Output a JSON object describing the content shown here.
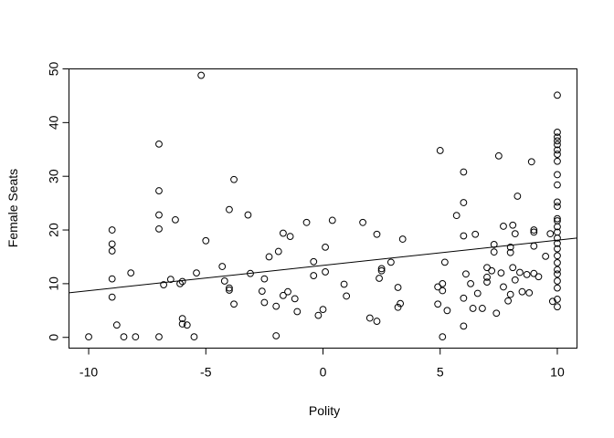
{
  "chart_data": {
    "type": "scatter",
    "title": "",
    "xlabel": "Polity",
    "ylabel": "Female Seats",
    "xlim": [
      -10.84,
      10.84
    ],
    "ylim": [
      -2.0,
      50.0
    ],
    "xticks": [
      -10,
      -5,
      0,
      5,
      10
    ],
    "yticks": [
      0,
      10,
      20,
      30,
      40,
      50
    ],
    "grid": false,
    "legend": "none",
    "fit_line": {
      "intercept": 13.4,
      "slope": 0.47
    },
    "points": [
      [
        -10,
        0.1
      ],
      [
        -9,
        7.5
      ],
      [
        -9,
        10.9
      ],
      [
        -9,
        16.1
      ],
      [
        -9,
        17.4
      ],
      [
        -9,
        20
      ],
      [
        -8.8,
        2.3
      ],
      [
        -8.5,
        0.1
      ],
      [
        -8.2,
        12
      ],
      [
        -8,
        0.1
      ],
      [
        -7,
        0.1
      ],
      [
        -7,
        20.2
      ],
      [
        -7,
        22.8
      ],
      [
        -7,
        27.3
      ],
      [
        -7,
        36
      ],
      [
        -6.8,
        9.8
      ],
      [
        -6.5,
        10.8
      ],
      [
        -6.3,
        21.9
      ],
      [
        -6.1,
        10
      ],
      [
        -6,
        3.5
      ],
      [
        -6,
        2.5
      ],
      [
        -6,
        10.4
      ],
      [
        -5.8,
        2.3
      ],
      [
        -5.5,
        0.1
      ],
      [
        -5.4,
        12
      ],
      [
        -5.2,
        48.8
      ],
      [
        -5,
        18
      ],
      [
        -4.3,
        13.2
      ],
      [
        -4.2,
        10.5
      ],
      [
        -4,
        9.2
      ],
      [
        -4,
        8.8
      ],
      [
        -4,
        23.8
      ],
      [
        -3.8,
        29.4
      ],
      [
        -3.8,
        6.2
      ],
      [
        -3.2,
        22.8
      ],
      [
        -3.1,
        11.9
      ],
      [
        -2.6,
        8.6
      ],
      [
        -2.5,
        10.9
      ],
      [
        -2.5,
        6.5
      ],
      [
        -2.3,
        15
      ],
      [
        -2,
        0.3
      ],
      [
        -2,
        5.8
      ],
      [
        -1.9,
        16
      ],
      [
        -1.7,
        19.4
      ],
      [
        -1.7,
        7.8
      ],
      [
        -1.5,
        8.5
      ],
      [
        -1.4,
        18.8
      ],
      [
        -1.2,
        7.2
      ],
      [
        -1.1,
        4.8
      ],
      [
        -0.7,
        21.4
      ],
      [
        -0.4,
        11.5
      ],
      [
        -0.4,
        14.1
      ],
      [
        -0.2,
        4.1
      ],
      [
        0,
        5.2
      ],
      [
        0.1,
        12.2
      ],
      [
        0.1,
        16.8
      ],
      [
        0.4,
        21.8
      ],
      [
        0.9,
        9.9
      ],
      [
        1,
        7.7
      ],
      [
        1.7,
        21.4
      ],
      [
        2,
        3.6
      ],
      [
        2.3,
        3
      ],
      [
        2.3,
        19.2
      ],
      [
        2.4,
        11
      ],
      [
        2.5,
        12.4
      ],
      [
        2.5,
        12.8
      ],
      [
        2.9,
        14
      ],
      [
        3.2,
        9.3
      ],
      [
        3.2,
        5.6
      ],
      [
        3.3,
        6.3
      ],
      [
        3.4,
        18.3
      ],
      [
        4.9,
        9.4
      ],
      [
        4.9,
        6.2
      ],
      [
        5,
        34.8
      ],
      [
        5.1,
        0.1
      ],
      [
        5.1,
        10
      ],
      [
        5.1,
        8.7
      ],
      [
        5.2,
        14
      ],
      [
        5.3,
        5
      ],
      [
        5.7,
        22.7
      ],
      [
        6,
        25.1
      ],
      [
        6,
        30.8
      ],
      [
        6,
        18.9
      ],
      [
        6,
        7.3
      ],
      [
        6,
        2.1
      ],
      [
        6.1,
        11.8
      ],
      [
        6.3,
        10
      ],
      [
        6.4,
        5.4
      ],
      [
        6.5,
        19.2
      ],
      [
        6.6,
        8.2
      ],
      [
        6.8,
        5.4
      ],
      [
        7,
        10.3
      ],
      [
        7,
        11.2
      ],
      [
        7,
        13
      ],
      [
        7.2,
        12.4
      ],
      [
        7.3,
        17.3
      ],
      [
        7.3,
        15.9
      ],
      [
        7.4,
        4.5
      ],
      [
        7.5,
        33.8
      ],
      [
        7.6,
        12
      ],
      [
        7.7,
        9.4
      ],
      [
        7.7,
        20.7
      ],
      [
        7.9,
        6.8
      ],
      [
        8,
        8
      ],
      [
        8,
        15.8
      ],
      [
        8,
        16.8
      ],
      [
        8.1,
        20.9
      ],
      [
        8.1,
        13
      ],
      [
        8.2,
        10.7
      ],
      [
        8.2,
        19.3
      ],
      [
        8.3,
        26.3
      ],
      [
        8.4,
        12.1
      ],
      [
        8.5,
        8.5
      ],
      [
        8.7,
        11.7
      ],
      [
        8.8,
        8.3
      ],
      [
        8.9,
        32.7
      ],
      [
        9,
        19.6
      ],
      [
        9,
        17
      ],
      [
        9,
        20
      ],
      [
        9,
        11.9
      ],
      [
        9.2,
        11.3
      ],
      [
        9.5,
        15.1
      ],
      [
        9.7,
        19.3
      ],
      [
        9.8,
        6.7
      ],
      [
        10,
        45.1
      ],
      [
        10,
        38.2
      ],
      [
        10,
        37.3
      ],
      [
        10,
        36.6
      ],
      [
        10,
        35.9
      ],
      [
        10,
        34.9
      ],
      [
        10,
        34.1
      ],
      [
        10,
        32.8
      ],
      [
        10,
        30.3
      ],
      [
        10,
        28.4
      ],
      [
        10,
        25.2
      ],
      [
        10,
        24.4
      ],
      [
        10,
        22.1
      ],
      [
        10,
        21.7
      ],
      [
        10,
        20.6
      ],
      [
        10,
        19.6
      ],
      [
        10,
        18.5
      ],
      [
        10,
        17.5
      ],
      [
        10,
        16.5
      ],
      [
        10,
        15.2
      ],
      [
        10,
        13.9
      ],
      [
        10,
        12.6
      ],
      [
        10,
        11.8
      ],
      [
        10,
        10.5
      ],
      [
        10,
        9.2
      ],
      [
        10,
        7.1
      ],
      [
        10,
        5.7
      ]
    ]
  }
}
